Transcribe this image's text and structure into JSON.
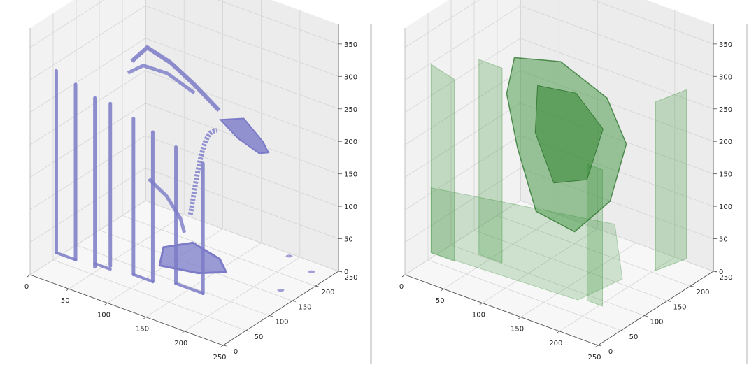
{
  "chart_data": [
    {
      "type": "3d-voxel-surface",
      "title": "",
      "xlabel": "",
      "ylabel": "",
      "zlabel": "",
      "xlim": [
        0,
        250
      ],
      "ylim": [
        0,
        250
      ],
      "zlim": [
        0,
        380
      ],
      "x_ticks": [
        "0",
        "50",
        "100",
        "150",
        "200",
        "250"
      ],
      "y_ticks": [
        "0",
        "50",
        "100",
        "150",
        "200",
        "250"
      ],
      "z_ticks": [
        "0",
        "50",
        "100",
        "150",
        "200",
        "250",
        "300",
        "350"
      ],
      "grid": true,
      "color": "#7b7bc8",
      "opacity": 0.85,
      "structure": "skeleton with vertical bars"
    },
    {
      "type": "3d-voxel-surface",
      "title": "",
      "xlabel": "",
      "ylabel": "",
      "zlabel": "",
      "xlim": [
        0,
        250
      ],
      "ylim": [
        0,
        250
      ],
      "zlim": [
        0,
        380
      ],
      "x_ticks": [
        "0",
        "50",
        "100",
        "150",
        "200",
        "250"
      ],
      "y_ticks": [
        "0",
        "50",
        "100",
        "150",
        "200",
        "250"
      ],
      "z_ticks": [
        "0",
        "50",
        "100",
        "150",
        "200",
        "250",
        "300",
        "350"
      ],
      "grid": true,
      "color": "#2e8b2e",
      "opacity": 0.3,
      "structure": "soft tissue surface with vertical bars"
    }
  ]
}
